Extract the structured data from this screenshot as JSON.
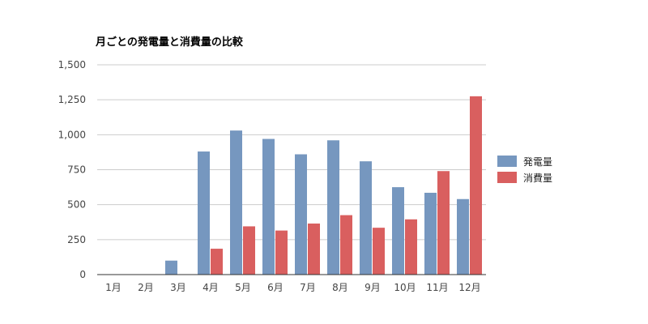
{
  "chart_data": {
    "type": "bar",
    "title": "月ごとの発電量と消費量の比較",
    "xlabel": "",
    "ylabel": "",
    "categories": [
      "1月",
      "2月",
      "3月",
      "4月",
      "5月",
      "6月",
      "7月",
      "8月",
      "9月",
      "10月",
      "11月",
      "12月"
    ],
    "series": [
      {
        "name": "発電量",
        "color": "#7697bf",
        "values": [
          0,
          0,
          100,
          880,
          1030,
          970,
          860,
          960,
          810,
          625,
          585,
          540
        ]
      },
      {
        "name": "消費量",
        "color": "#d95f5f",
        "values": [
          0,
          0,
          0,
          185,
          345,
          315,
          365,
          425,
          335,
          395,
          740,
          1275
        ]
      }
    ],
    "ylim": [
      0,
      1500
    ],
    "yticks": [
      0,
      250,
      500,
      750,
      1000,
      1250,
      1500
    ],
    "ytick_labels": [
      "0",
      "250",
      "500",
      "750",
      "1,000",
      "1,250",
      "1,500"
    ],
    "grid": true,
    "legend_position": "right"
  }
}
